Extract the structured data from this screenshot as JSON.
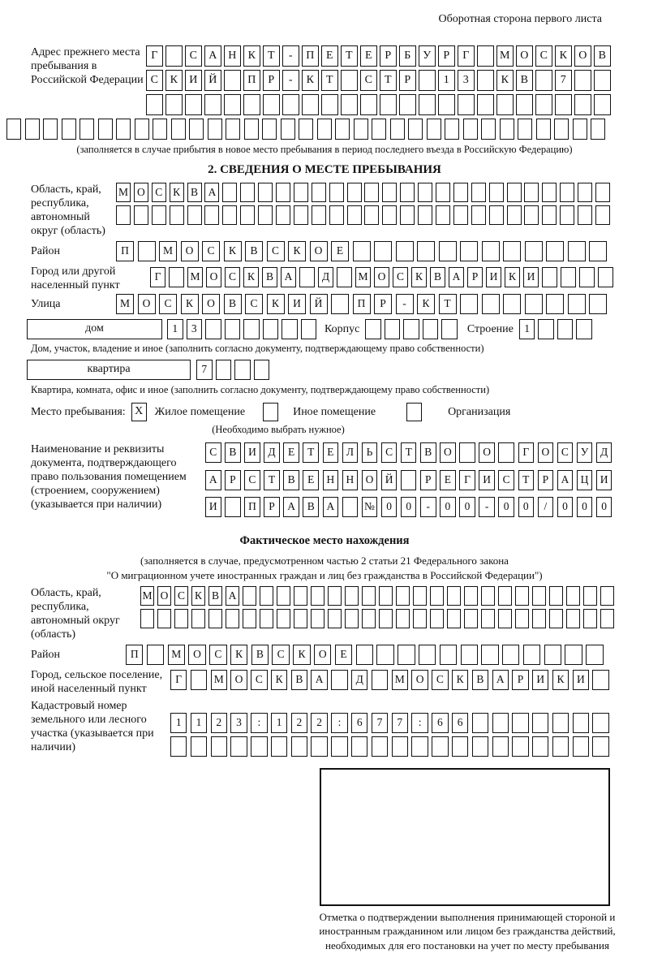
{
  "page": {
    "header_note": "Оборотная сторона первого листа"
  },
  "prev_address": {
    "label": "Адрес прежнего места пребывания в Российской Федерации",
    "rows": {
      "r1": "Г_САНКТ-ПЕТЕРБУРГ_МОСКОВ",
      "r2": "СКИЙ_ПР-КТ_СТР_13_КВ_7__",
      "r3": "________________________"
    },
    "row_full": "_________________________________",
    "note": "(заполняется в случае прибытия в новое место пребывания в период последнего въезда в Российскую Федерацию)"
  },
  "section2": {
    "title": "2. СВЕДЕНИЯ О МЕСТЕ ПРЕБЫВАНИЯ",
    "oblast": {
      "label": "Область, край, республика, автономный округ (область)",
      "row1": "МОСКВА______________________",
      "row2": "____________________________"
    },
    "raion": {
      "label": "Район",
      "row": "П_МОСКВСКОЕ____________"
    },
    "gorod": {
      "label": "Город или другой населенный пункт",
      "row": "Г_МОСКВА_Д_МОСКВАРИКИ____"
    },
    "ulitsa": {
      "label": "Улица",
      "row": "МОСКОВСКИЙ_ПР-КТ_______"
    },
    "dom": {
      "value": "дом",
      "cells": "13______",
      "korpus_label": "Корпус",
      "korpus_cells": "_____",
      "stroenie_label": "Строение",
      "stroenie_cells": "1___",
      "note": "Дом, участок, владение и иное (заполнить согласно документу, подтверждающему право собственности)"
    },
    "kvartira": {
      "value": "квартира",
      "cells": "7___",
      "note": "Квартира, комната, офис и иное (заполнить согласно документу, подтверждающему право собственности)"
    },
    "mesto": {
      "label": "Место пребывания:",
      "options": [
        {
          "label": "Жилое помещение",
          "mark": "X"
        },
        {
          "label": "Иное помещение",
          "mark": ""
        },
        {
          "label": "Организация",
          "mark": ""
        }
      ],
      "note": "(Необходимо выбрать нужное)"
    },
    "doc": {
      "label": "Наименование и реквизиты документа, подтверждающего право пользования помещением (строением, сооружением) (указывается при наличии)",
      "rows": {
        "r1": "СВИДЕТЕЛЬСТВО_О_ГОСУД",
        "r2": "АРСТВЕННОЙ_РЕГИСТРАЦИ",
        "r3": "И_ПРАВА_№00-00-00/000"
      }
    }
  },
  "fact": {
    "title": "Фактическое место нахождения",
    "note_line1": "(заполняется в случае, предусмотренном частью 2 статьи 21 Федерального закона",
    "note_line2": "\"О миграционном учете иностранных граждан и лиц без гражданства в Российской Федерации\")",
    "oblast": {
      "label": "Область, край, республика, автономный округ (область)",
      "row1": "МОСКВА______________________",
      "row2": "____________________________"
    },
    "raion": {
      "label": "Район",
      "row": "П_МОСКВСКОЕ____________"
    },
    "gorod": {
      "label": "Город, сельское поселение, иной населенный пункт",
      "row": "Г_МОСКВА_Д_МОСКВАРИКИ_"
    },
    "kadastr": {
      "label": "Кадастровый номер земельного или лесного участка (указывается при наличии)",
      "row1": "1123:122:677:66_______",
      "row2": "______________________"
    },
    "stamp_note": "Отметка о подтверждении выполнения принимающей стороной и иностранным гражданином или лицом без гражданства действий, необходимых для его постановки на учет по месту пребывания"
  }
}
